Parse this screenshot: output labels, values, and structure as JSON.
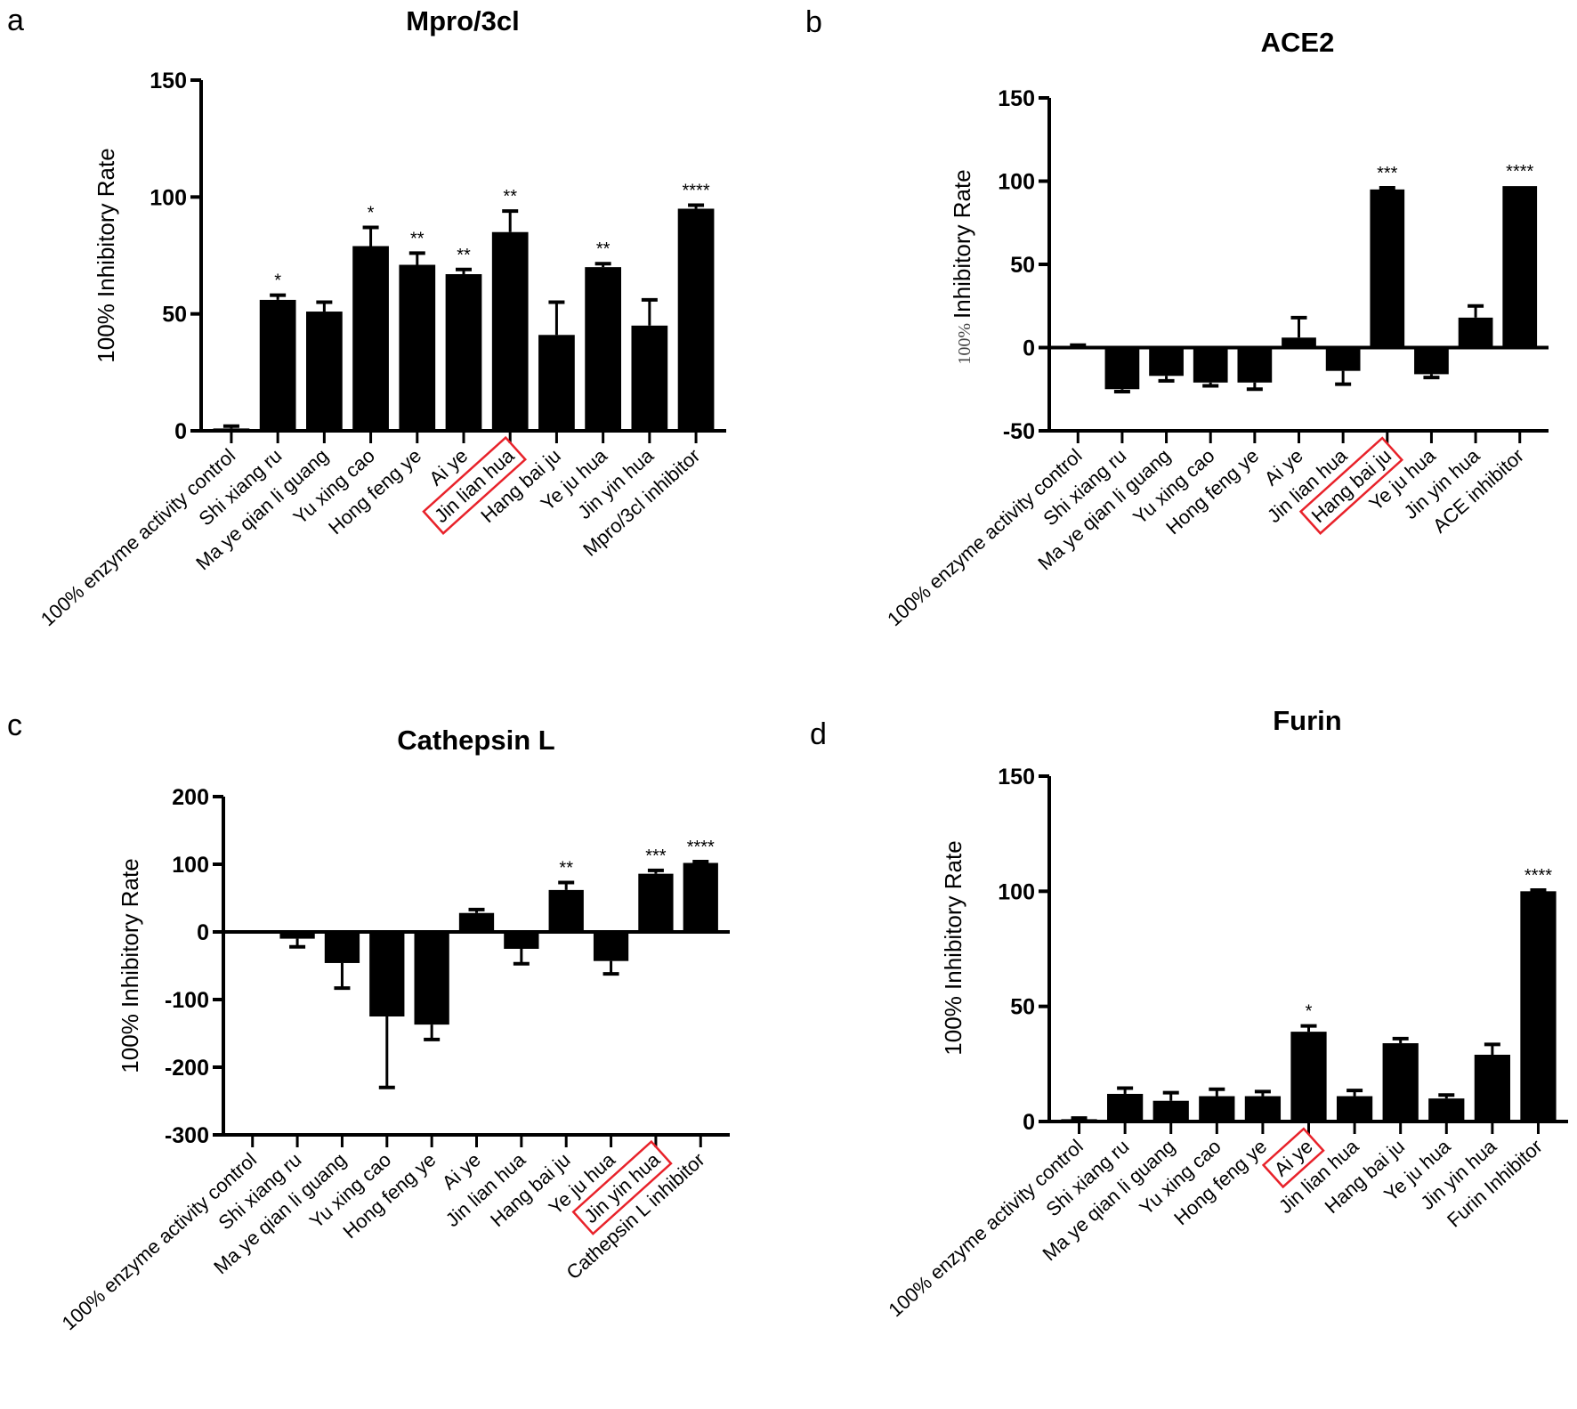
{
  "accent_colors": {
    "bar": "#000000",
    "highlight_box": "#e8222a"
  },
  "chart_data": [
    {
      "type": "bar",
      "panel": "a",
      "title": "Mpro/3cl",
      "ylabel": "100% Inhibitory Rate",
      "xlabel": "",
      "ylim": [
        0,
        150
      ],
      "yticks": [
        0,
        50,
        100,
        150
      ],
      "categories": [
        "100% enzyme activity control",
        "Shi xiang ru",
        "Ma ye qian li guang",
        "Yu xing cao",
        "Hong feng ye",
        "Ai ye",
        "Jin lian hua",
        "Hang bai ju",
        "Ye ju hua",
        "Jin yin hua",
        "Mpro/3cl inhibitor"
      ],
      "values": [
        1,
        56,
        51,
        79,
        71,
        67,
        85,
        41,
        70,
        45,
        95
      ],
      "errors": [
        1,
        2,
        4,
        8,
        5,
        2,
        9,
        14,
        1.5,
        11,
        1.5
      ],
      "significance": [
        "",
        "*",
        "",
        "*",
        "**",
        "**",
        "**",
        "",
        "**",
        "",
        "****"
      ],
      "highlighted": "Jin lian hua",
      "grid": false
    },
    {
      "type": "bar",
      "panel": "b",
      "title": "ACE2",
      "ylabel_prefix": "100%",
      "ylabel": "Inhibitory Rate",
      "xlabel": "",
      "ylim": [
        -50,
        150
      ],
      "yticks": [
        -50,
        0,
        50,
        100,
        150
      ],
      "categories": [
        "100% enzyme activity control",
        "Shi xiang ru",
        "Ma ye qian li guang",
        "Yu xing cao",
        "Hong feng ye",
        "Ai ye",
        "Jin lian hua",
        "Hang bai ju",
        "Ye ju hua",
        "Jin yin hua",
        "ACE inhibitor"
      ],
      "values": [
        1,
        -25,
        -17,
        -21,
        -21,
        6,
        -14,
        95,
        -16,
        18,
        97
      ],
      "errors": [
        0.5,
        1.5,
        3,
        2,
        4,
        12,
        8,
        1,
        2,
        7,
        0
      ],
      "significance": [
        "",
        "",
        "",
        "",
        "",
        "",
        "",
        "***",
        "",
        "",
        "****"
      ],
      "highlighted": "Hang bai ju",
      "grid": false
    },
    {
      "type": "bar",
      "panel": "c",
      "title": "Cathepsin L",
      "ylabel": "100% Inhibitory Rate",
      "xlabel": "",
      "ylim": [
        -300,
        200
      ],
      "yticks": [
        -300,
        -200,
        -100,
        0,
        100,
        200
      ],
      "categories": [
        "100% enzyme activity control",
        "Shi xiang ru",
        "Ma ye qian li guang",
        "Yu xing cao",
        "Hong feng ye",
        "Ai ye",
        "Jin lian hua",
        "Hang bai ju",
        "Ye ju hua",
        "Jin yin hua",
        "Cathepsin L inhibitor"
      ],
      "values": [
        1,
        -10,
        -46,
        -125,
        -137,
        28,
        -25,
        62,
        -43,
        86,
        102
      ],
      "errors": [
        0,
        12,
        37,
        105,
        22,
        5,
        22,
        11,
        19,
        5,
        2
      ],
      "significance": [
        "",
        "",
        "",
        "",
        "",
        "",
        "",
        "**",
        "",
        "***",
        "****"
      ],
      "highlighted": "Jin yin hua",
      "grid": false
    },
    {
      "type": "bar",
      "panel": "d",
      "title": "Furin",
      "ylabel": "100% Inhibitory Rate",
      "xlabel": "",
      "ylim": [
        0,
        150
      ],
      "yticks": [
        0,
        50,
        100,
        150
      ],
      "categories": [
        "100% enzyme activity control",
        "Shi xiang ru",
        "Ma ye qian li guang",
        "Yu xing cao",
        "Hong feng ye",
        "Ai ye",
        "Jin lian hua",
        "Hang bai ju",
        "Ye ju hua",
        "Jin yin hua",
        "Furin Inhibitor"
      ],
      "values": [
        1,
        12,
        9,
        11,
        11,
        39,
        11,
        34,
        10,
        29,
        100
      ],
      "errors": [
        0.5,
        2.5,
        3.5,
        3,
        2,
        2.5,
        2.5,
        2,
        1.5,
        4.5,
        0.5
      ],
      "significance": [
        "",
        "",
        "",
        "",
        "",
        "*",
        "",
        "",
        "",
        "",
        "****"
      ],
      "highlighted": "Ai ye",
      "grid": false
    }
  ]
}
